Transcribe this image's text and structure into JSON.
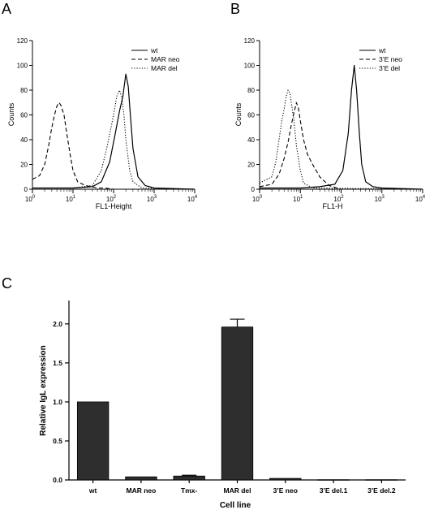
{
  "chart_data": [
    {
      "panel_label": "A",
      "type": "line",
      "xscale": "log",
      "xlim": [
        1,
        10000
      ],
      "ylim": [
        0,
        120
      ],
      "yticks": [
        0,
        20,
        40,
        60,
        80,
        100,
        120
      ],
      "xtick_bases": [
        "10",
        "10",
        "10",
        "10",
        "10"
      ],
      "xtick_exps": [
        "0",
        "1",
        "2",
        "3",
        "4"
      ],
      "xlabel": "FL1-Height",
      "ylabel": "Counts",
      "legend_position": "top-right",
      "series": [
        {
          "name": "wt",
          "style": "solid",
          "x": [
            1,
            3,
            10,
            30,
            50,
            80,
            110,
            140,
            170,
            200,
            230,
            260,
            300,
            400,
            600,
            1000,
            10000
          ],
          "y": [
            1,
            1,
            1,
            2,
            6,
            22,
            45,
            63,
            75,
            93,
            83,
            60,
            33,
            10,
            3,
            1,
            0
          ]
        },
        {
          "name": "MAR neo",
          "style": "dashed",
          "x": [
            1,
            1.5,
            2,
            2.5,
            3,
            3.5,
            4,
            4.5,
            5,
            6,
            7,
            8.5,
            10,
            13,
            20,
            40,
            60,
            100,
            10000
          ],
          "y": [
            8,
            11,
            20,
            35,
            50,
            60,
            67,
            70,
            68,
            60,
            45,
            28,
            15,
            6,
            3,
            1,
            1,
            0,
            0
          ]
        },
        {
          "name": "MAR del",
          "style": "dotted",
          "x": [
            1,
            10,
            30,
            50,
            70,
            100,
            120,
            140,
            160,
            180,
            200,
            250,
            300,
            500,
            10000
          ],
          "y": [
            1,
            1,
            3,
            15,
            35,
            60,
            75,
            80,
            74,
            60,
            40,
            15,
            6,
            1,
            0
          ]
        }
      ]
    },
    {
      "panel_label": "B",
      "type": "line",
      "xscale": "log",
      "xlim": [
        1,
        10000
      ],
      "ylim": [
        0,
        120
      ],
      "yticks": [
        0,
        20,
        40,
        60,
        80,
        100,
        120
      ],
      "xtick_bases": [
        "10",
        "10",
        "10",
        "10",
        "10"
      ],
      "xtick_exps": [
        "0",
        "1",
        "2",
        "3",
        "4"
      ],
      "xlabel": "FL1-H",
      "ylabel": "Counts",
      "legend_position": "top-right",
      "series": [
        {
          "name": "wt",
          "style": "solid",
          "x": [
            1,
            10,
            30,
            70,
            110,
            150,
            180,
            210,
            240,
            280,
            320,
            400,
            600,
            1000,
            10000
          ],
          "y": [
            1,
            1,
            2,
            4,
            15,
            45,
            80,
            100,
            80,
            45,
            20,
            6,
            2,
            1,
            0
          ]
        },
        {
          "name": "3’E neo",
          "style": "dashed",
          "x": [
            1,
            2,
            3,
            4,
            5,
            6,
            7,
            8,
            9,
            10,
            12,
            15,
            20,
            30,
            50,
            80,
            100,
            10000
          ],
          "y": [
            2,
            4,
            12,
            25,
            38,
            52,
            62,
            70,
            65,
            55,
            40,
            28,
            20,
            10,
            3,
            1,
            0,
            0
          ]
        },
        {
          "name": "3’E del",
          "style": "dotted",
          "x": [
            1,
            2,
            2.5,
            3,
            3.5,
            4,
            4.5,
            5,
            5.5,
            6,
            7,
            8,
            10,
            12,
            20,
            10000
          ],
          "y": [
            5,
            10,
            22,
            40,
            55,
            65,
            75,
            80,
            78,
            70,
            55,
            35,
            15,
            5,
            1,
            0
          ]
        }
      ]
    },
    {
      "panel_label": "C",
      "type": "bar",
      "categories": [
        "wt",
        "MAR neo",
        "Tmx-",
        "MAR del",
        "3’E neo",
        "3’E del.1",
        "3’E del.2"
      ],
      "values": [
        1.0,
        0.04,
        0.05,
        1.96,
        0.02,
        0.003,
        0.003
      ],
      "errors": [
        0,
        0,
        0.01,
        0.1,
        0,
        0,
        0
      ],
      "ylim": [
        0,
        2.3
      ],
      "yticks": [
        0.0,
        0.5,
        1.0,
        1.5,
        2.0
      ],
      "ytick_labels": [
        "0.0",
        "0.5",
        "1.0",
        "1.5",
        "2.0"
      ],
      "xlabel": "Cell line",
      "ylabel": "Relative IgL expression",
      "bar_color": "#2e2e2e"
    }
  ]
}
